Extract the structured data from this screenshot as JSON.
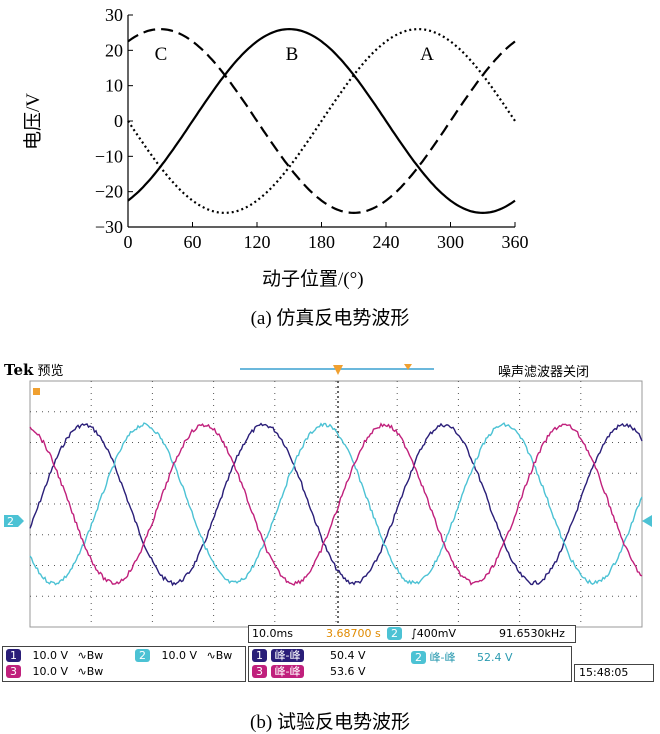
{
  "chart_data": {
    "type": "line",
    "xlabel": "动子位置/(°)",
    "ylabel": "电压/V",
    "xlim": [
      0,
      360
    ],
    "ylim": [
      -30,
      30
    ],
    "xticks": [
      "0",
      "60",
      "120",
      "180",
      "240",
      "300",
      "360"
    ],
    "yticks": [
      "30",
      "20",
      "10",
      "0",
      "−10",
      "−20",
      "−30"
    ],
    "series": [
      {
        "name": "A",
        "style": "dotted",
        "amplitude": 26,
        "peak_at_deg": 270
      },
      {
        "name": "B",
        "style": "solid",
        "amplitude": 26,
        "peak_at_deg": 150
      },
      {
        "name": "C",
        "style": "dashed",
        "amplitude": 26,
        "peak_at_deg": 30
      }
    ]
  },
  "captions": {
    "a": "(a) 仿真反电势波形",
    "b": "(b) 试验反电势波形"
  },
  "scope": {
    "brand": "Tek",
    "mode": "预览",
    "filter_status": "噪声滤波器关闭",
    "ch2_marker": "2",
    "trigger_marker": "T",
    "timebase": "10.0ms",
    "trigger_pos": "3.68700 s",
    "trigger_ch": "2",
    "trigger_level": "∫400mV",
    "frequency": "91.6530kHz",
    "channels": [
      {
        "id": "1",
        "volts": "10.0 V",
        "bw": "∿Bw",
        "color": "#2a1e78"
      },
      {
        "id": "2",
        "volts": "10.0 V",
        "bw": "∿Bw",
        "color": "#4cc2d4"
      },
      {
        "id": "3",
        "volts": "10.0 V",
        "bw": "∿Bw",
        "color": "#c0207c"
      }
    ],
    "measurements": [
      {
        "ch": "1",
        "label": "峰-峰",
        "value": "50.4 V"
      },
      {
        "ch": "2",
        "label": "峰-峰",
        "value": "52.4 V"
      },
      {
        "ch": "3",
        "label": "峰-峰",
        "value": "53.6 V"
      }
    ],
    "time": "15:48:05"
  }
}
